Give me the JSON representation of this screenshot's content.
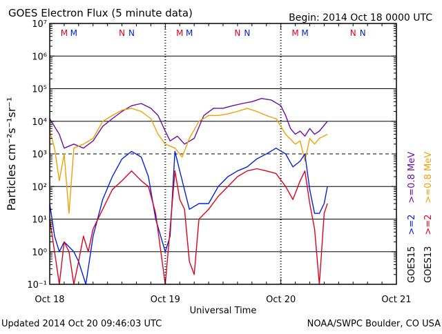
{
  "header": {
    "title": "GOES Electron Flux (5 minute data)",
    "begin": "Begin: 2014 Oct 18 0000 UTC"
  },
  "footer": {
    "updated": "Updated 2014 Oct 20 09:46:03 UTC",
    "credit": "NOAA/SWPC Boulder, CO USA"
  },
  "chart_data": {
    "type": "line",
    "title": "GOES Electron Flux (5 minute data)",
    "xlabel": "Universal Time",
    "ylabel": "Particles cm⁻²s⁻¹sr⁻¹",
    "y_scale": "log",
    "ylim": [
      0.1,
      10000000
    ],
    "xlim": [
      "2014-10-18 00:00",
      "2014-10-21 00:00"
    ],
    "x_ticks": [
      "Oct 18",
      "Oct 19",
      "Oct 20",
      "Oct 21"
    ],
    "y_ticks": [
      "10⁻¹",
      "10⁰",
      "10¹",
      "10²",
      "10³",
      "10⁴",
      "10⁵",
      "10⁶",
      "10⁷"
    ],
    "dashed_gridline_y": 1000,
    "grid": true,
    "markers": [
      {
        "label": "M",
        "x": "2014-10-18 03:00",
        "color": "#e0001c"
      },
      {
        "label": "M",
        "x": "2014-10-18 05:00",
        "color": "#0020e0"
      },
      {
        "label": "N",
        "x": "2014-10-18 15:00",
        "color": "#e0001c"
      },
      {
        "label": "N",
        "x": "2014-10-18 17:00",
        "color": "#0020e0"
      },
      {
        "label": "M",
        "x": "2014-10-19 03:00",
        "color": "#e0001c"
      },
      {
        "label": "M",
        "x": "2014-10-19 05:00",
        "color": "#0020e0"
      },
      {
        "label": "N",
        "x": "2014-10-19 15:00",
        "color": "#e0001c"
      },
      {
        "label": "N",
        "x": "2014-10-19 17:00",
        "color": "#0020e0"
      },
      {
        "label": "M",
        "x": "2014-10-20 03:00",
        "color": "#e0001c"
      },
      {
        "label": "M",
        "x": "2014-10-20 05:00",
        "color": "#0020e0"
      },
      {
        "label": "N",
        "x": "2014-10-20 15:00",
        "color": "#e0001c"
      },
      {
        "label": "N",
        "x": "2014-10-20 17:00",
        "color": "#0020e0"
      }
    ],
    "legend": {
      "placement": "right",
      "columns": [
        {
          "satellite": "GOES15",
          "entries": [
            {
              "text": ">=2",
              "color": "#0020e0"
            },
            {
              "text": ">=0.8 MeV",
              "color": "#6a0aa8"
            }
          ]
        },
        {
          "satellite": "GOES13",
          "entries": [
            {
              "text": ">=2",
              "color": "#e0001c"
            },
            {
              "text": ">=0.8 MeV",
              "color": "#f0a000"
            }
          ]
        }
      ]
    },
    "series": [
      {
        "name": "GOES15 >=0.8 MeV",
        "color": "#6a0aa8",
        "points": [
          [
            "2014-10-18 00:00",
            12000
          ],
          [
            "2014-10-18 02:00",
            4000
          ],
          [
            "2014-10-18 03:00",
            1500
          ],
          [
            "2014-10-18 05:00",
            2000
          ],
          [
            "2014-10-18 07:00",
            1500
          ],
          [
            "2014-10-18 09:00",
            2500
          ],
          [
            "2014-10-18 11:00",
            7000
          ],
          [
            "2014-10-18 13:00",
            12000
          ],
          [
            "2014-10-18 15:00",
            20000
          ],
          [
            "2014-10-18 17:00",
            30000
          ],
          [
            "2014-10-18 19:00",
            35000
          ],
          [
            "2014-10-18 21:00",
            25000
          ],
          [
            "2014-10-18 22:30",
            15000
          ],
          [
            "2014-10-19 00:00",
            5000
          ],
          [
            "2014-10-19 01:00",
            2500
          ],
          [
            "2014-10-19 02:30",
            3500
          ],
          [
            "2014-10-19 04:00",
            2000
          ],
          [
            "2014-10-19 06:00",
            3000
          ],
          [
            "2014-10-19 08:00",
            15000
          ],
          [
            "2014-10-19 10:00",
            25000
          ],
          [
            "2014-10-19 12:00",
            25000
          ],
          [
            "2014-10-19 14:00",
            30000
          ],
          [
            "2014-10-19 16:00",
            35000
          ],
          [
            "2014-10-19 18:00",
            40000
          ],
          [
            "2014-10-19 20:00",
            50000
          ],
          [
            "2014-10-19 22:00",
            45000
          ],
          [
            "2014-10-20 00:00",
            30000
          ],
          [
            "2014-10-20 01:00",
            15000
          ],
          [
            "2014-10-20 02:00",
            6000
          ],
          [
            "2014-10-20 03:00",
            4000
          ],
          [
            "2014-10-20 04:00",
            5000
          ],
          [
            "2014-10-20 05:00",
            3500
          ],
          [
            "2014-10-20 06:00",
            6000
          ],
          [
            "2014-10-20 07:00",
            4000
          ],
          [
            "2014-10-20 08:00",
            5000
          ],
          [
            "2014-10-20 09:40",
            10000
          ]
        ]
      },
      {
        "name": "GOES13 >=0.8 MeV",
        "color": "#f0a000",
        "points": [
          [
            "2014-10-18 00:00",
            5000
          ],
          [
            "2014-10-18 01:00",
            1500
          ],
          [
            "2014-10-18 02:00",
            150
          ],
          [
            "2014-10-18 03:00",
            1000
          ],
          [
            "2014-10-18 04:00",
            15
          ],
          [
            "2014-10-18 05:00",
            1500
          ],
          [
            "2014-10-18 07:00",
            2000
          ],
          [
            "2014-10-18 09:00",
            3000
          ],
          [
            "2014-10-18 11:00",
            10000
          ],
          [
            "2014-10-18 13:00",
            15000
          ],
          [
            "2014-10-18 15:00",
            22000
          ],
          [
            "2014-10-18 17:00",
            25000
          ],
          [
            "2014-10-18 19:00",
            20000
          ],
          [
            "2014-10-18 21:00",
            12000
          ],
          [
            "2014-10-18 22:30",
            4000
          ],
          [
            "2014-10-19 00:00",
            2000
          ],
          [
            "2014-10-19 02:00",
            1500
          ],
          [
            "2014-10-19 03:30",
            800
          ],
          [
            "2014-10-19 05:00",
            3000
          ],
          [
            "2014-10-19 07:00",
            10000
          ],
          [
            "2014-10-19 09:00",
            15000
          ],
          [
            "2014-10-19 11:00",
            15000
          ],
          [
            "2014-10-19 13:00",
            17000
          ],
          [
            "2014-10-19 15:00",
            20000
          ],
          [
            "2014-10-19 17:00",
            25000
          ],
          [
            "2014-10-19 19:00",
            20000
          ],
          [
            "2014-10-19 21:00",
            15000
          ],
          [
            "2014-10-19 23:00",
            12000
          ],
          [
            "2014-10-20 01:00",
            4000
          ],
          [
            "2014-10-20 03:00",
            2000
          ],
          [
            "2014-10-20 04:00",
            2500
          ],
          [
            "2014-10-20 05:00",
            600
          ],
          [
            "2014-10-20 06:00",
            3000
          ],
          [
            "2014-10-20 07:00",
            2000
          ],
          [
            "2014-10-20 08:00",
            3000
          ],
          [
            "2014-10-20 09:40",
            4000
          ]
        ]
      },
      {
        "name": "GOES15 >=2",
        "color": "#0020e0",
        "points": [
          [
            "2014-10-18 00:00",
            30
          ],
          [
            "2014-10-18 01:00",
            3
          ],
          [
            "2014-10-18 02:00",
            1
          ],
          [
            "2014-10-18 03:00",
            2
          ],
          [
            "2014-10-18 05:00",
            1
          ],
          [
            "2014-10-18 06:00",
            0.5
          ],
          [
            "2014-10-18 07:30",
            0.1
          ],
          [
            "2014-10-18 09:00",
            3
          ],
          [
            "2014-10-18 11:00",
            40
          ],
          [
            "2014-10-18 13:00",
            200
          ],
          [
            "2014-10-18 15:00",
            700
          ],
          [
            "2014-10-18 17:00",
            1200
          ],
          [
            "2014-10-18 19:00",
            800
          ],
          [
            "2014-10-18 20:30",
            200
          ],
          [
            "2014-10-18 22:00",
            10
          ],
          [
            "2014-10-19 00:00",
            1
          ],
          [
            "2014-10-19 01:00",
            3
          ],
          [
            "2014-10-19 02:00",
            1200
          ],
          [
            "2014-10-19 03:00",
            300
          ],
          [
            "2014-10-19 05:00",
            20
          ],
          [
            "2014-10-19 07:00",
            30
          ],
          [
            "2014-10-19 09:00",
            30
          ],
          [
            "2014-10-19 11:00",
            100
          ],
          [
            "2014-10-19 13:00",
            200
          ],
          [
            "2014-10-19 15:00",
            300
          ],
          [
            "2014-10-19 17:00",
            400
          ],
          [
            "2014-10-19 19:00",
            700
          ],
          [
            "2014-10-19 21:00",
            1000
          ],
          [
            "2014-10-19 23:00",
            1500
          ],
          [
            "2014-10-20 01:00",
            1000
          ],
          [
            "2014-10-20 02:30",
            400
          ],
          [
            "2014-10-20 04:00",
            600
          ],
          [
            "2014-10-20 05:00",
            1000
          ],
          [
            "2014-10-20 06:00",
            80
          ],
          [
            "2014-10-20 07:00",
            15
          ],
          [
            "2014-10-20 08:00",
            15
          ],
          [
            "2014-10-20 09:00",
            30
          ],
          [
            "2014-10-20 09:40",
            100
          ]
        ]
      },
      {
        "name": "GOES13 >=2",
        "color": "#e0001c",
        "points": [
          [
            "2014-10-18 00:00",
            10
          ],
          [
            "2014-10-18 01:00",
            1
          ],
          [
            "2014-10-18 02:00",
            0.1
          ],
          [
            "2014-10-18 03:00",
            2
          ],
          [
            "2014-10-18 04:00",
            1
          ],
          [
            "2014-10-18 05:00",
            0.1
          ],
          [
            "2014-10-18 06:00",
            0.5
          ],
          [
            "2014-10-18 07:00",
            3
          ],
          [
            "2014-10-18 08:00",
            1
          ],
          [
            "2014-10-18 09:00",
            5
          ],
          [
            "2014-10-18 11:00",
            20
          ],
          [
            "2014-10-18 13:00",
            80
          ],
          [
            "2014-10-18 15:00",
            150
          ],
          [
            "2014-10-18 17:00",
            300
          ],
          [
            "2014-10-18 19:00",
            150
          ],
          [
            "2014-10-18 20:30",
            100
          ],
          [
            "2014-10-18 22:00",
            15
          ],
          [
            "2014-10-19 00:00",
            0.1
          ],
          [
            "2014-10-19 01:00",
            5
          ],
          [
            "2014-10-19 02:00",
            300
          ],
          [
            "2014-10-19 03:00",
            40
          ],
          [
            "2014-10-19 04:00",
            20
          ],
          [
            "2014-10-19 05:00",
            0.5
          ],
          [
            "2014-10-19 06:00",
            0.2
          ],
          [
            "2014-10-19 07:00",
            10
          ],
          [
            "2014-10-19 09:00",
            20
          ],
          [
            "2014-10-19 11:00",
            50
          ],
          [
            "2014-10-19 13:00",
            100
          ],
          [
            "2014-10-19 15:00",
            200
          ],
          [
            "2014-10-19 17:00",
            300
          ],
          [
            "2014-10-19 19:00",
            350
          ],
          [
            "2014-10-19 21:00",
            300
          ],
          [
            "2014-10-19 23:00",
            250
          ],
          [
            "2014-10-20 01:00",
            100
          ],
          [
            "2014-10-20 02:30",
            40
          ],
          [
            "2014-10-20 04:00",
            150
          ],
          [
            "2014-10-20 05:00",
            300
          ],
          [
            "2014-10-20 06:00",
            30
          ],
          [
            "2014-10-20 07:00",
            5
          ],
          [
            "2014-10-20 08:00",
            0.1
          ],
          [
            "2014-10-20 09:00",
            15
          ],
          [
            "2014-10-20 09:40",
            30
          ]
        ]
      }
    ]
  }
}
